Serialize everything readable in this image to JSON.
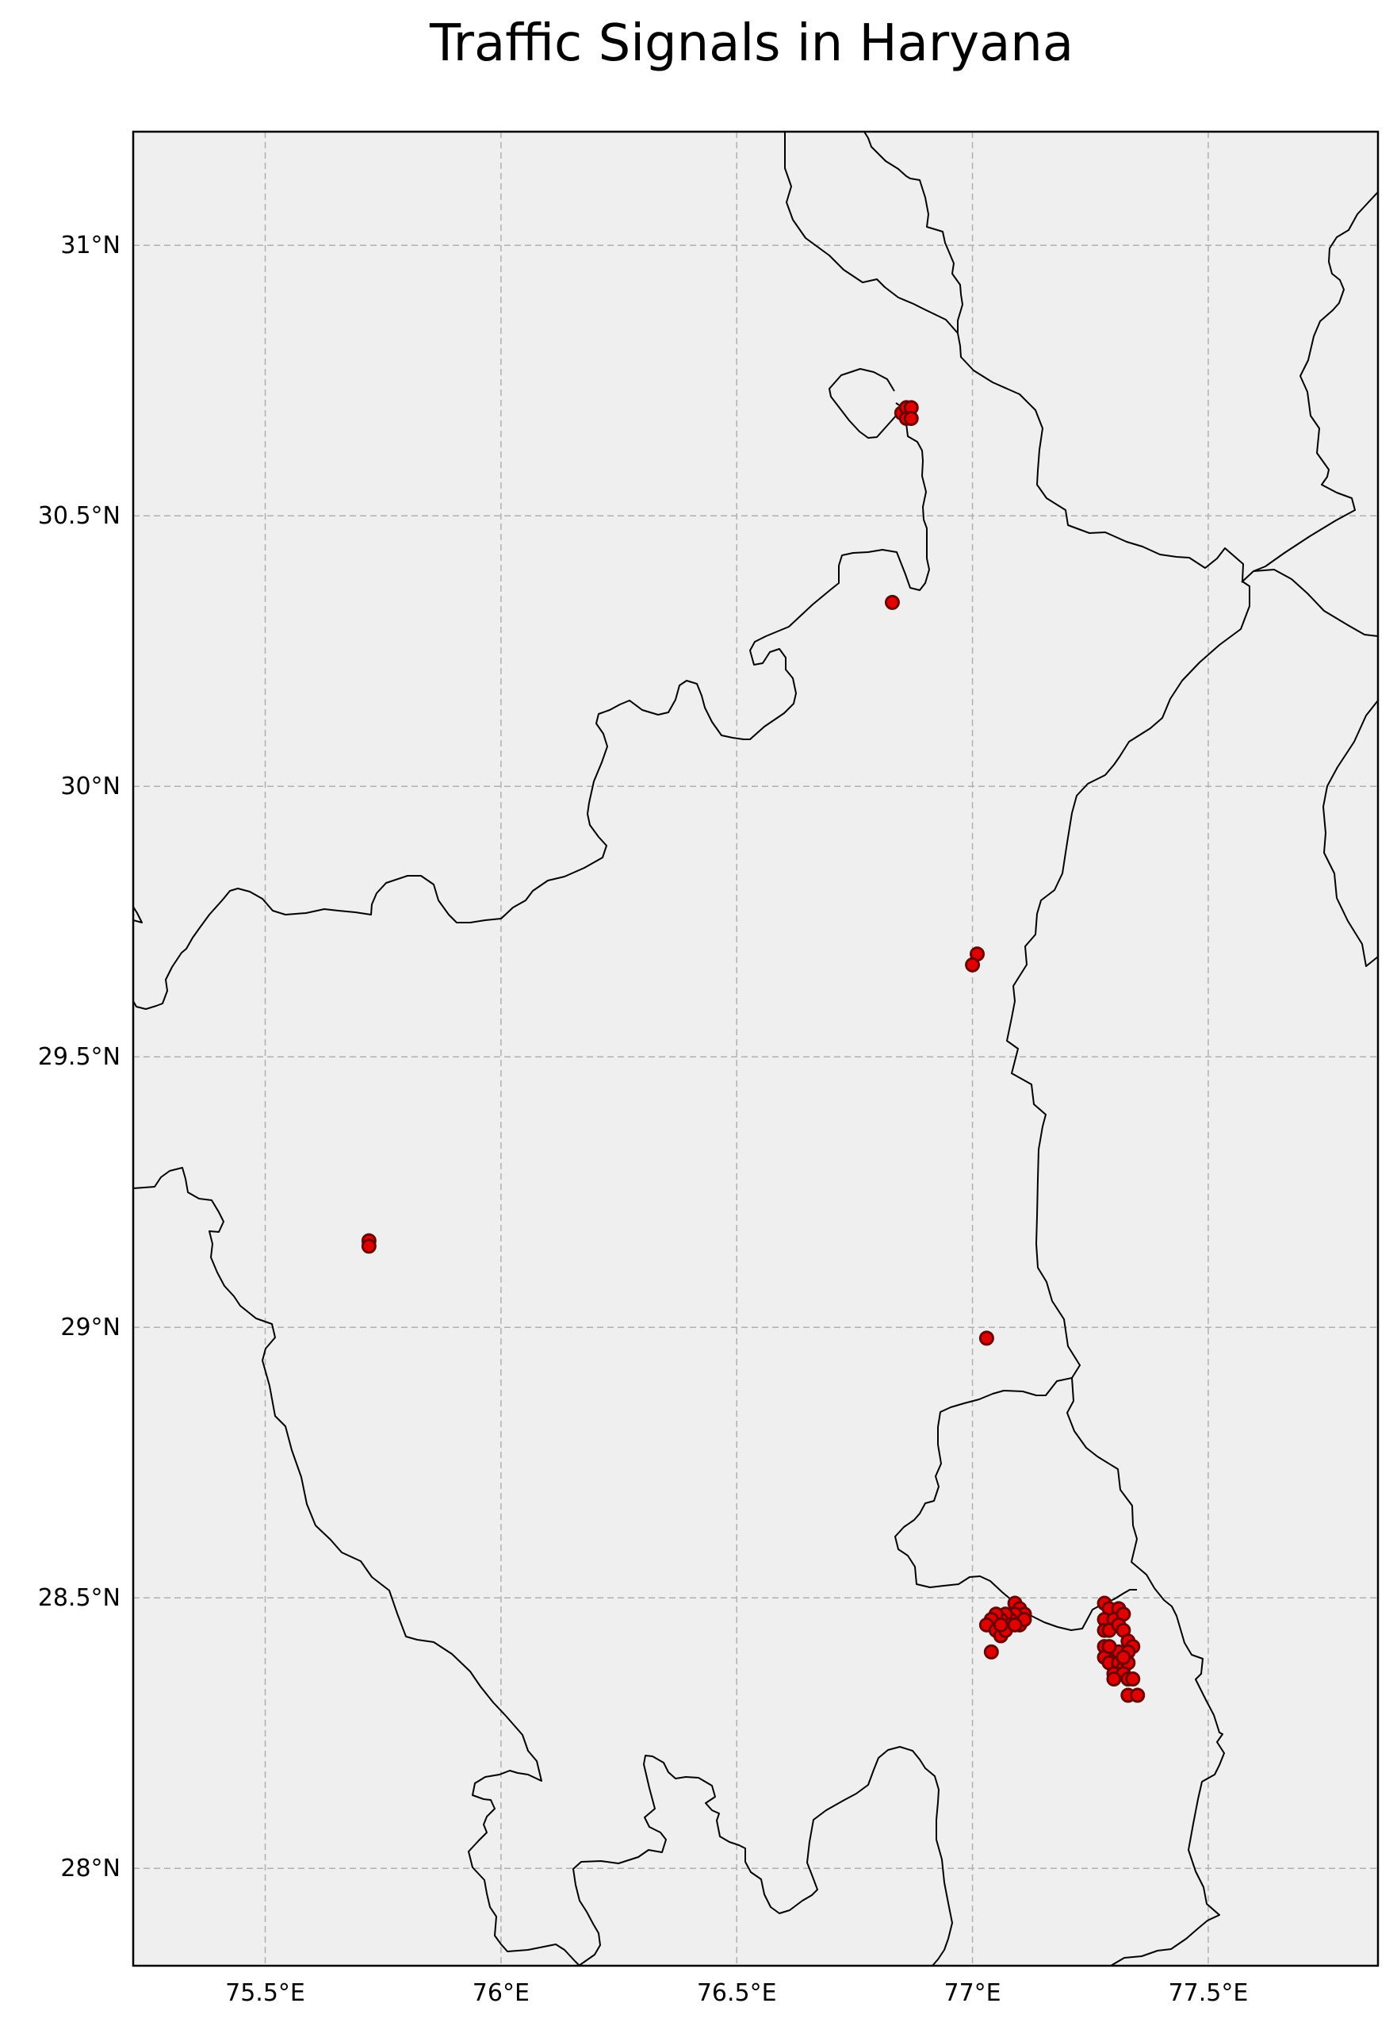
{
  "title": "Traffic Signals in Haryana",
  "colors": {
    "plot_background": "#efefef",
    "marker_fill": "#e00000",
    "marker_edge": "#6a0000",
    "grid": "#b0b0b0",
    "boundary": "#000000"
  },
  "x_ticks": [
    {
      "value": 75.5,
      "label": "75.5°E"
    },
    {
      "value": 76.0,
      "label": "76°E"
    },
    {
      "value": 76.5,
      "label": "76.5°E"
    },
    {
      "value": 77.0,
      "label": "77°E"
    },
    {
      "value": 77.5,
      "label": "77.5°E"
    }
  ],
  "y_ticks": [
    {
      "value": 31.0,
      "label": "31°N"
    },
    {
      "value": 30.5,
      "label": "30.5°N"
    },
    {
      "value": 30.0,
      "label": "30°N"
    },
    {
      "value": 29.5,
      "label": "29.5°N"
    },
    {
      "value": 29.0,
      "label": "29°N"
    },
    {
      "value": 28.5,
      "label": "28.5°N"
    },
    {
      "value": 28.0,
      "label": "28°N"
    }
  ],
  "chart_data": {
    "type": "scatter",
    "title": "Traffic Signals in Haryana",
    "xlabel": "",
    "ylabel": "",
    "xlim": [
      75.22,
      77.86
    ],
    "ylim": [
      27.82,
      31.21
    ],
    "grid": true,
    "series": [
      {
        "points": [
          [
            76.85,
            30.69
          ],
          [
            76.86,
            30.7
          ],
          [
            76.87,
            30.7
          ],
          [
            76.86,
            30.68
          ],
          [
            76.87,
            30.68
          ],
          [
            76.83,
            30.34
          ],
          [
            77.01,
            29.69
          ],
          [
            77.0,
            29.67
          ],
          [
            75.72,
            29.16
          ],
          [
            75.72,
            29.15
          ],
          [
            77.03,
            28.98
          ],
          [
            77.09,
            28.49
          ],
          [
            77.1,
            28.48
          ],
          [
            77.11,
            28.47
          ],
          [
            77.1,
            28.46
          ],
          [
            77.09,
            28.47
          ],
          [
            77.08,
            28.46
          ],
          [
            77.07,
            28.47
          ],
          [
            77.06,
            28.46
          ],
          [
            77.05,
            28.47
          ],
          [
            77.04,
            28.46
          ],
          [
            77.03,
            28.45
          ],
          [
            77.05,
            28.44
          ],
          [
            77.06,
            28.43
          ],
          [
            77.08,
            28.45
          ],
          [
            77.1,
            28.45
          ],
          [
            77.11,
            28.46
          ],
          [
            77.04,
            28.4
          ],
          [
            77.07,
            28.44
          ],
          [
            77.09,
            28.45
          ],
          [
            77.06,
            28.45
          ],
          [
            77.28,
            28.49
          ],
          [
            77.29,
            28.48
          ],
          [
            77.31,
            28.48
          ],
          [
            77.28,
            28.46
          ],
          [
            77.3,
            28.46
          ],
          [
            77.32,
            28.47
          ],
          [
            77.28,
            28.44
          ],
          [
            77.29,
            28.44
          ],
          [
            77.31,
            28.45
          ],
          [
            77.32,
            28.44
          ],
          [
            77.33,
            28.42
          ],
          [
            77.34,
            28.41
          ],
          [
            77.28,
            28.41
          ],
          [
            77.3,
            28.4
          ],
          [
            77.31,
            28.4
          ],
          [
            77.33,
            28.4
          ],
          [
            77.28,
            28.39
          ],
          [
            77.29,
            28.38
          ],
          [
            77.31,
            28.38
          ],
          [
            77.32,
            28.37
          ],
          [
            77.33,
            28.38
          ],
          [
            77.3,
            28.36
          ],
          [
            77.32,
            28.36
          ],
          [
            77.33,
            28.35
          ],
          [
            77.3,
            28.35
          ],
          [
            77.34,
            28.35
          ],
          [
            77.33,
            28.32
          ],
          [
            77.35,
            28.32
          ],
          [
            77.29,
            28.41
          ],
          [
            77.32,
            28.39
          ]
        ]
      }
    ]
  }
}
